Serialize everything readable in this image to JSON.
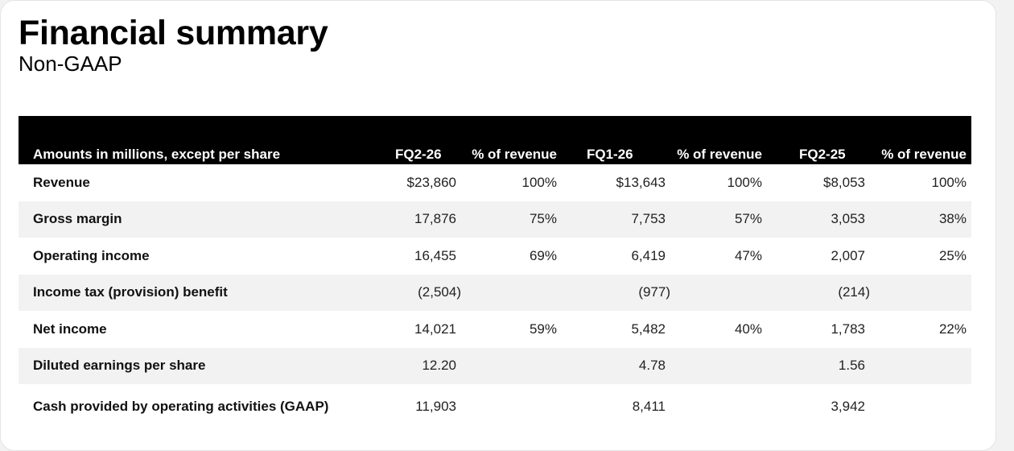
{
  "title": "Financial summary",
  "subtitle": "Non-GAAP",
  "table": {
    "headers": [
      "Amounts in millions, except per share",
      "FQ2-26",
      "% of revenue",
      "FQ1-26",
      "% of revenue",
      "FQ2-25",
      "% of revenue"
    ],
    "rows": [
      [
        "Revenue",
        "$23,860",
        "100%",
        "$13,643",
        "100%",
        "$8,053",
        "100%"
      ],
      [
        "Gross margin",
        "17,876",
        "75%",
        "7,753",
        "57%",
        "3,053",
        "38%"
      ],
      [
        "Operating income",
        "16,455",
        "69%",
        "6,419",
        "47%",
        "2,007",
        "25%"
      ],
      [
        "Income tax (provision) benefit",
        "(2,504)",
        "",
        "(977)",
        "",
        "(214)",
        ""
      ],
      [
        "Net income",
        "14,021",
        "59%",
        "5,482",
        "40%",
        "1,783",
        "22%"
      ],
      [
        "Diluted earnings per share",
        "12.20",
        "",
        "4.78",
        "",
        "1.56",
        ""
      ],
      [
        "Cash provided by operating activities (GAAP)",
        "11,903",
        "",
        "8,411",
        "",
        "3,942",
        ""
      ]
    ]
  },
  "colors": {
    "header_bg": "#000000",
    "header_text": "#ffffff",
    "zebra_row": "#f2f2f2"
  }
}
